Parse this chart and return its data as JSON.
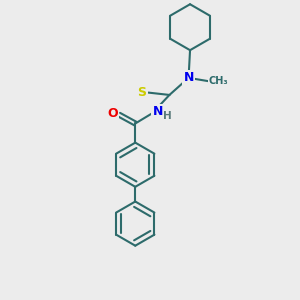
{
  "background_color": "#ececec",
  "bond_color": "#2d6b6b",
  "atom_colors": {
    "S": "#cccc00",
    "N": "#0000ee",
    "O": "#ee0000",
    "H": "#5a7a7a",
    "C": "#2d6b6b"
  },
  "figsize": [
    3.0,
    3.0
  ],
  "dpi": 100
}
